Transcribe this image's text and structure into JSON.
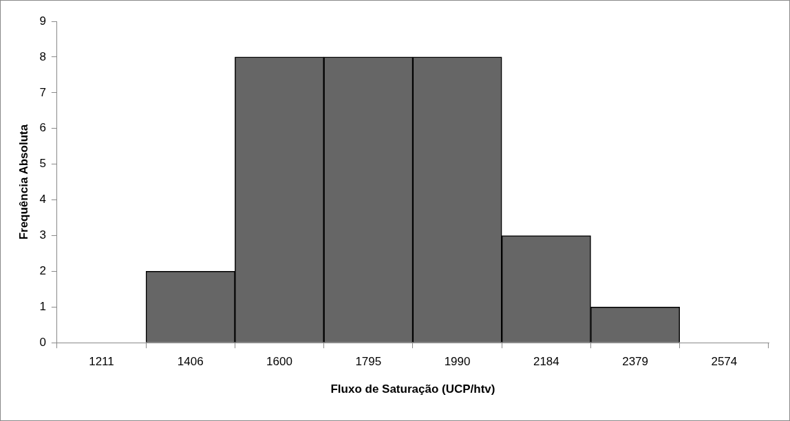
{
  "chart_data": {
    "type": "bar",
    "xlabel": "Fluxo de Saturação (UCP/htv)",
    "ylabel": "Frequência Absoluta",
    "categories": [
      "1211",
      "1406",
      "1600",
      "1795",
      "1990",
      "2184",
      "2379",
      "2574"
    ],
    "values": [
      0,
      2,
      8,
      8,
      8,
      3,
      1,
      0
    ],
    "color": "#666666",
    "ylim": [
      0,
      9
    ],
    "yticks": [
      0,
      1,
      2,
      3,
      4,
      5,
      6,
      7,
      8,
      9
    ],
    "grid": false,
    "legend": false
  }
}
